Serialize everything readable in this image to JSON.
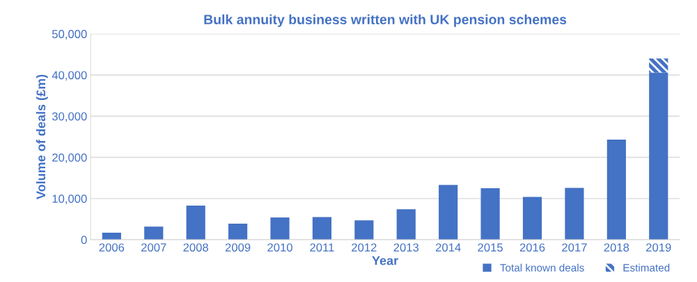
{
  "chart_data": {
    "type": "bar",
    "title": "Bulk annuity business written with UK pension schemes",
    "xlabel": "Year",
    "ylabel": "Volume of deals (£m)",
    "categories": [
      "2006",
      "2007",
      "2008",
      "2009",
      "2010",
      "2011",
      "2012",
      "2013",
      "2014",
      "2015",
      "2016",
      "2017",
      "2018",
      "2019"
    ],
    "series": [
      {
        "name": "Total known deals",
        "color": "#4472c4",
        "values": [
          1700,
          3200,
          8300,
          3900,
          5400,
          5500,
          4700,
          7400,
          13300,
          12500,
          10400,
          12600,
          24300,
          40600
        ]
      },
      {
        "name": "Estimated",
        "color": "#4472c4",
        "values": [
          null,
          null,
          null,
          null,
          null,
          null,
          null,
          null,
          null,
          null,
          null,
          null,
          null,
          3400
        ]
      }
    ],
    "stacked": true,
    "ylim": [
      0,
      50000
    ],
    "yticks": [
      {
        "value": 0,
        "label": "0"
      },
      {
        "value": 10000,
        "label": "10,000"
      },
      {
        "value": 20000,
        "label": "20,000"
      },
      {
        "value": 30000,
        "label": "30,000"
      },
      {
        "value": 40000,
        "label": "40,000"
      },
      {
        "value": 50000,
        "label": "50,000"
      }
    ],
    "grid": "y",
    "legend": "bottom right"
  }
}
